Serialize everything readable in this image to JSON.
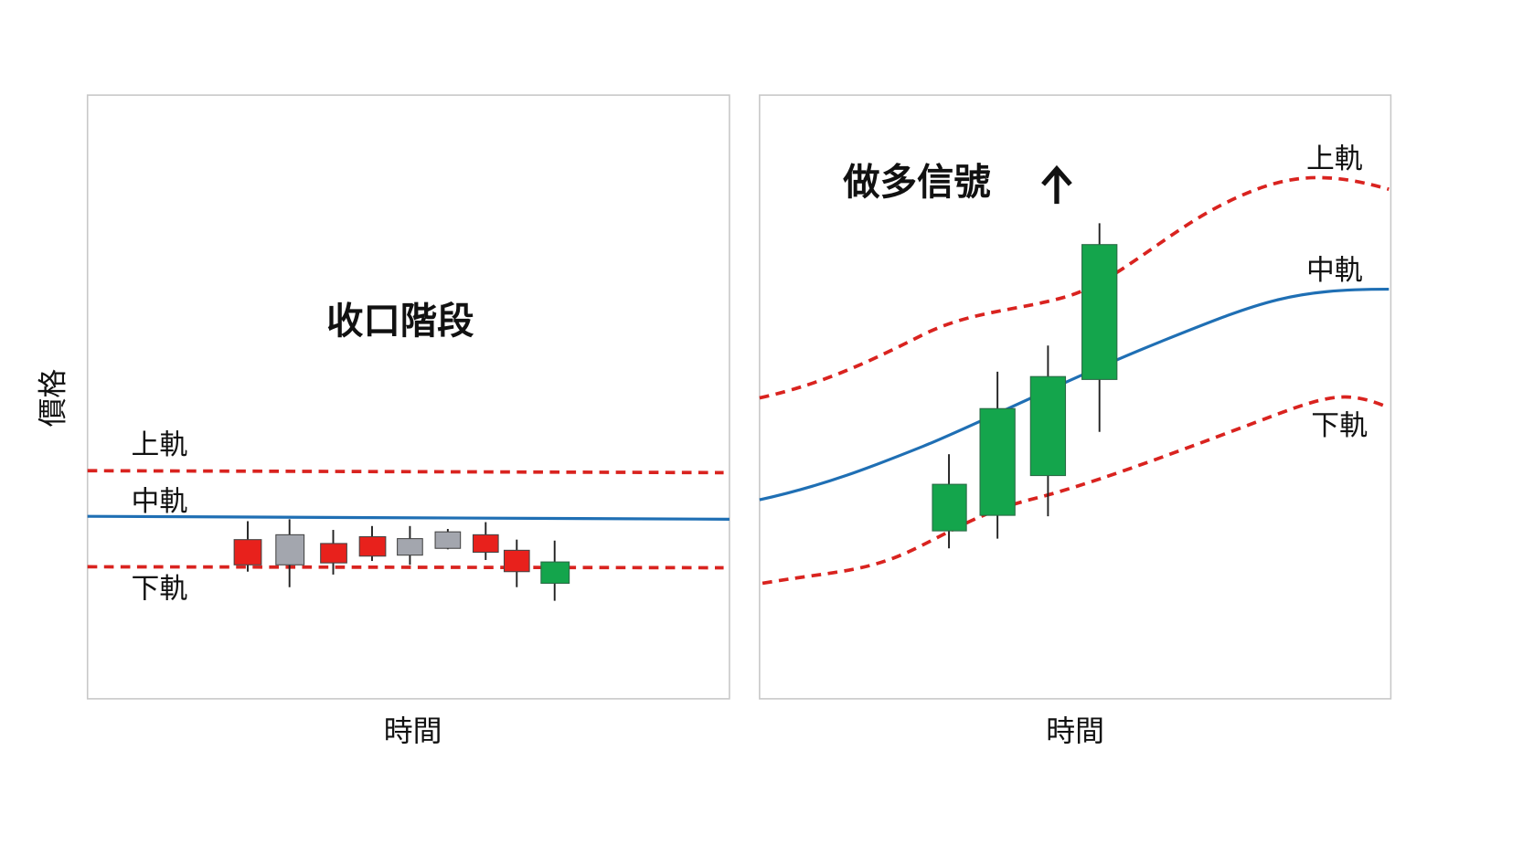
{
  "y_axis_label": "價格",
  "panels": [
    {
      "title": "收口階段",
      "x_axis_label": "時間",
      "bands": {
        "upper": "上軌",
        "middle": "中軌",
        "lower": "下軌"
      }
    },
    {
      "title": "做多信號",
      "x_axis_label": "時間",
      "bands": {
        "upper": "上軌",
        "middle": "中軌",
        "lower": "下軌"
      }
    }
  ]
}
